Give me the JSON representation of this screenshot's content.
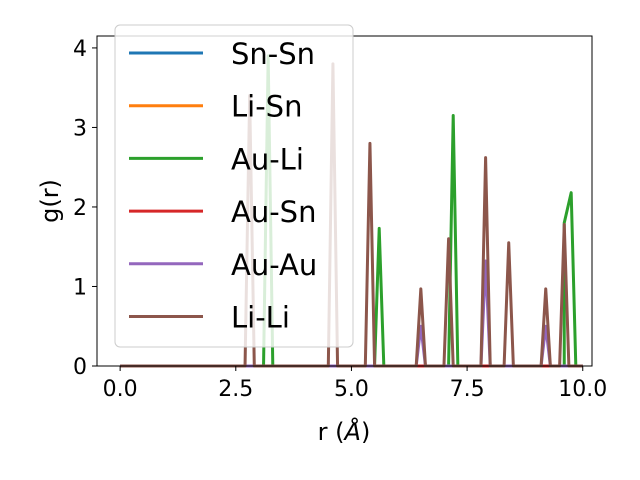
{
  "chart_data": {
    "type": "line",
    "xlabel_prefix": "r (",
    "xlabel_unit": "Å",
    "xlabel_suffix": ")",
    "ylabel": "g(r)",
    "xlim": [
      -0.5,
      10.2
    ],
    "ylim": [
      0,
      4.15
    ],
    "xticks": [
      0.0,
      2.5,
      5.0,
      7.5,
      10.0
    ],
    "xtick_labels": [
      "0.0",
      "2.5",
      "5.0",
      "7.5",
      "10.0"
    ],
    "yticks": [
      0,
      1,
      2,
      3,
      4
    ],
    "ytick_labels": [
      "0",
      "1",
      "2",
      "3",
      "4"
    ],
    "grid": false,
    "legend_position": "upper-left",
    "series": [
      {
        "name": "Sn-Sn",
        "color": "#1f77b4",
        "points": [
          [
            0.0,
            0
          ],
          [
            10.0,
            0
          ]
        ]
      },
      {
        "name": "Li-Sn",
        "color": "#ff7f0e",
        "points": [
          [
            0.0,
            0
          ],
          [
            10.0,
            0
          ]
        ]
      },
      {
        "name": "Au-Li",
        "color": "#2ca02c",
        "points": [
          [
            0.0,
            0
          ],
          [
            3.1,
            0
          ],
          [
            3.2,
            3.9
          ],
          [
            3.3,
            0
          ],
          [
            5.5,
            0
          ],
          [
            5.6,
            1.73
          ],
          [
            5.7,
            0
          ],
          [
            7.1,
            0
          ],
          [
            7.2,
            3.15
          ],
          [
            7.3,
            0
          ],
          [
            9.6,
            0
          ],
          [
            9.6,
            1.8
          ],
          [
            9.75,
            2.18
          ],
          [
            9.85,
            0
          ],
          [
            10.0,
            0
          ]
        ]
      },
      {
        "name": "Au-Sn",
        "color": "#d62728",
        "points": [
          [
            0.0,
            0
          ],
          [
            10.0,
            0
          ]
        ]
      },
      {
        "name": "Au-Au",
        "color": "#9467bd",
        "points": [
          [
            0.0,
            0
          ],
          [
            6.4,
            0
          ],
          [
            6.5,
            0.5
          ],
          [
            6.6,
            0
          ],
          [
            7.8,
            0
          ],
          [
            7.9,
            1.32
          ],
          [
            8.0,
            0
          ],
          [
            9.1,
            0
          ],
          [
            9.2,
            0.5
          ],
          [
            9.3,
            0
          ],
          [
            10.0,
            0
          ]
        ]
      },
      {
        "name": "Li-Li",
        "color": "#8c564b",
        "points": [
          [
            0.0,
            0
          ],
          [
            2.7,
            0
          ],
          [
            2.8,
            3.4
          ],
          [
            2.9,
            0
          ],
          [
            4.5,
            0
          ],
          [
            4.6,
            3.8
          ],
          [
            4.7,
            0
          ],
          [
            5.3,
            0
          ],
          [
            5.4,
            2.8
          ],
          [
            5.5,
            0
          ],
          [
            6.4,
            0
          ],
          [
            6.5,
            0.97
          ],
          [
            6.6,
            0
          ],
          [
            7.0,
            0
          ],
          [
            7.1,
            1.6
          ],
          [
            7.2,
            0
          ],
          [
            7.8,
            0
          ],
          [
            7.9,
            2.62
          ],
          [
            8.0,
            0
          ],
          [
            8.3,
            0
          ],
          [
            8.4,
            1.55
          ],
          [
            8.5,
            0
          ],
          [
            9.1,
            0
          ],
          [
            9.2,
            0.97
          ],
          [
            9.3,
            0
          ],
          [
            9.5,
            0
          ],
          [
            9.6,
            1.78
          ],
          [
            9.7,
            0
          ],
          [
            10.0,
            0
          ]
        ]
      }
    ]
  }
}
